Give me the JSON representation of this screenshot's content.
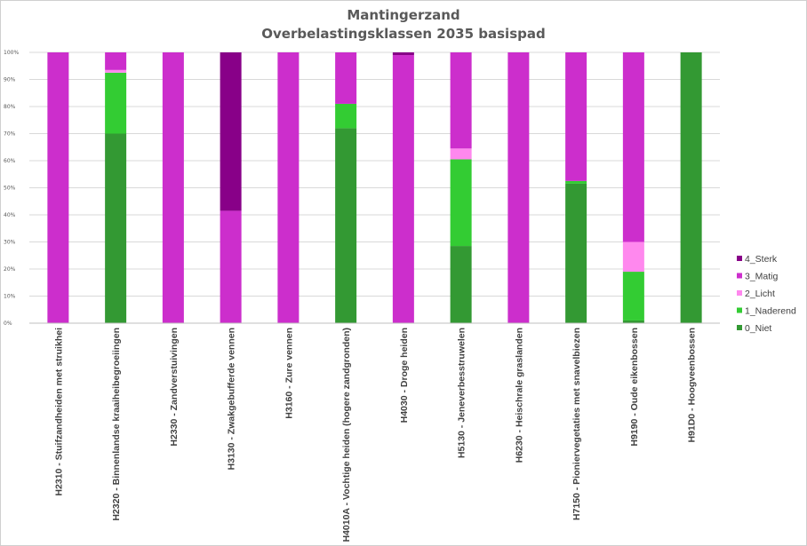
{
  "chart_data": {
    "type": "bar",
    "stacked": true,
    "title": "Mantingerzand",
    "subtitle": "Overbelastingsklassen 2035 basispad",
    "ylim": [
      0,
      100
    ],
    "yticks": [
      "0%",
      "10%",
      "20%",
      "30%",
      "40%",
      "50%",
      "60%",
      "70%",
      "80%",
      "90%",
      "100%"
    ],
    "grid": true,
    "legend_position": "right",
    "categories": [
      "H2310 - Stuifzandheiden met struikhei",
      "H2320 - Binnenlandse kraaiheibegroeiingen",
      "H2330 - Zandverstuivingen",
      "H3130 - Zwakgebufferde vennen",
      "H3160 - Zure vennen",
      "H4010A - Vochtige heiden (hogere zandgronden)",
      "H4030 - Droge heiden",
      "H5130 - Jeneverbesstruwelen",
      "H6230 - Heischrale graslanden",
      "H7150 - Pioniervegetaties met snavelbiezen",
      "H9190 - Oude eikenbossen",
      "H91D0 - Hoogveenbossen"
    ],
    "series": [
      {
        "name": "0_Niet",
        "color": "#339933",
        "values": [
          0,
          70,
          0,
          0,
          0,
          72,
          0,
          28.5,
          0,
          51.5,
          1,
          100
        ]
      },
      {
        "name": "1_Naderend",
        "color": "#33cc33",
        "values": [
          0,
          22.5,
          0,
          0,
          0,
          9,
          0,
          32,
          0,
          1,
          18,
          0
        ]
      },
      {
        "name": "2_Licht",
        "color": "#ff88ee",
        "values": [
          0,
          1,
          0,
          0,
          0,
          0,
          0,
          4,
          0,
          0,
          11,
          0
        ]
      },
      {
        "name": "3_Matig",
        "color": "#cc2ecc",
        "values": [
          100,
          6.5,
          100,
          41.5,
          100,
          19,
          99,
          35.5,
          100,
          47.5,
          70,
          0
        ]
      },
      {
        "name": "4_Sterk",
        "color": "#880088",
        "values": [
          0,
          0,
          0,
          58.5,
          0,
          0,
          1,
          0,
          0,
          0,
          0,
          0
        ]
      }
    ]
  }
}
